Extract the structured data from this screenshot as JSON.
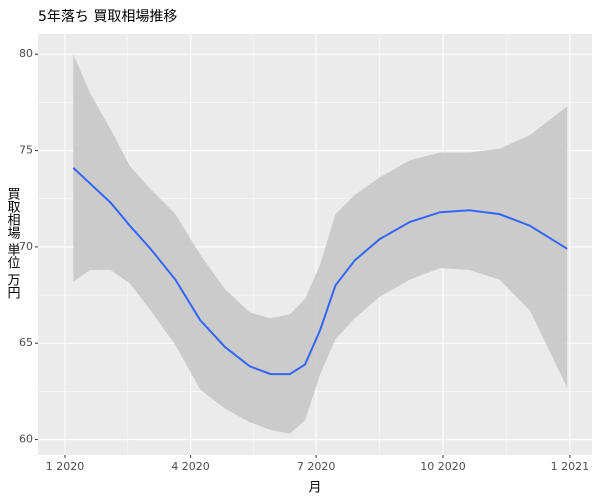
{
  "chart_data": {
    "type": "smooth",
    "title": "5年落ち 買取相場推移",
    "x_label": "月",
    "y_label": "買取相場 単位 万円",
    "x": [
      6,
      18,
      33,
      47,
      62,
      80,
      98,
      116,
      134,
      149,
      163,
      174,
      185,
      196,
      210,
      228,
      250,
      272,
      293,
      315,
      337,
      364
    ],
    "series": [
      {
        "color": "#3366ff",
        "band_color": "#c9c9c9",
        "values": [
          74.1,
          73.3,
          72.3,
          71.1,
          69.9,
          68.3,
          66.2,
          64.8,
          63.8,
          63.4,
          63.4,
          63.9,
          65.7,
          68.0,
          69.3,
          70.4,
          71.3,
          71.8,
          71.9,
          71.7,
          71.1,
          69.9
        ],
        "upper": [
          80.0,
          78.0,
          76.1,
          74.2,
          73.0,
          71.7,
          69.6,
          67.8,
          66.6,
          66.3,
          66.5,
          67.3,
          69.1,
          71.7,
          72.7,
          73.6,
          74.5,
          74.9,
          74.9,
          75.1,
          75.8,
          77.3
        ],
        "lower": [
          68.2,
          68.8,
          68.8,
          68.1,
          66.7,
          64.9,
          62.6,
          61.6,
          60.9,
          60.5,
          60.3,
          61.0,
          63.4,
          65.2,
          66.3,
          67.4,
          68.3,
          68.9,
          68.8,
          68.3,
          66.7,
          62.7
        ]
      }
    ],
    "xlim": [
      -19.6,
      382
    ],
    "xticks": [
      {
        "value": 0,
        "label": "1 2020"
      },
      {
        "value": 91,
        "label": "4 2020"
      },
      {
        "value": 182,
        "label": "7 2020"
      },
      {
        "value": 274,
        "label": "10 2020"
      },
      {
        "value": 366,
        "label": "1 2021"
      }
    ],
    "ylim": [
      59.2,
      81.05
    ],
    "yticks": [
      60,
      65,
      70,
      75,
      80
    ],
    "grid": true,
    "minor_grid": true,
    "panel_color": "#ebebeb"
  }
}
